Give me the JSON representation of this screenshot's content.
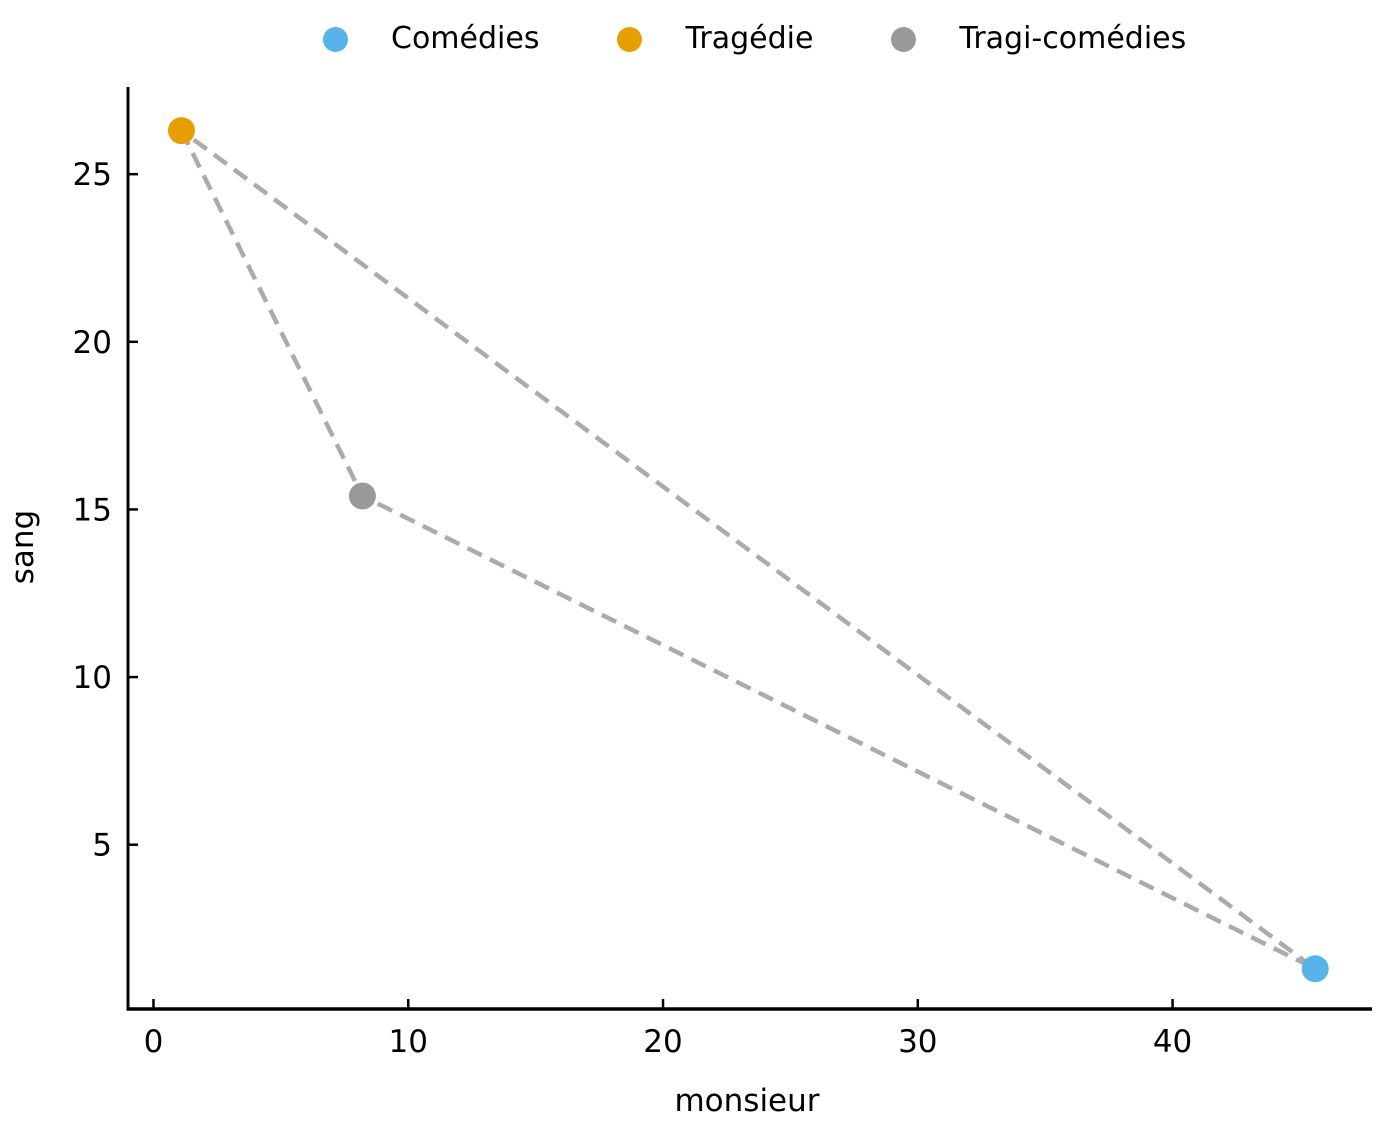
{
  "chart_data": {
    "type": "scatter",
    "title": "",
    "xlabel": "monsieur",
    "ylabel": "sang",
    "xlim": [
      -1.0,
      47.2
    ],
    "ylim": [
      0.1,
      27.6
    ],
    "x_ticks": [
      0,
      10,
      20,
      30,
      40
    ],
    "y_ticks": [
      5,
      10,
      15,
      20,
      25
    ],
    "grid": false,
    "legend_position": "top",
    "background_color": "#ffffff",
    "axis_color": "#000000",
    "series": [
      {
        "name": "Comédies",
        "color": "#56B4E9",
        "points": [
          {
            "x": 45.6,
            "y": 1.3
          }
        ]
      },
      {
        "name": "Tragédie",
        "color": "#E69F00",
        "points": [
          {
            "x": 1.1,
            "y": 26.3
          }
        ]
      },
      {
        "name": "Tragi-comédies",
        "color": "#999999",
        "points": [
          {
            "x": 8.2,
            "y": 15.4
          }
        ]
      }
    ],
    "connector": {
      "color": "#ababab",
      "style": "dashed",
      "closed": true,
      "series_order": [
        "Tragédie",
        "Tragi-comédies",
        "Comédies"
      ]
    }
  }
}
